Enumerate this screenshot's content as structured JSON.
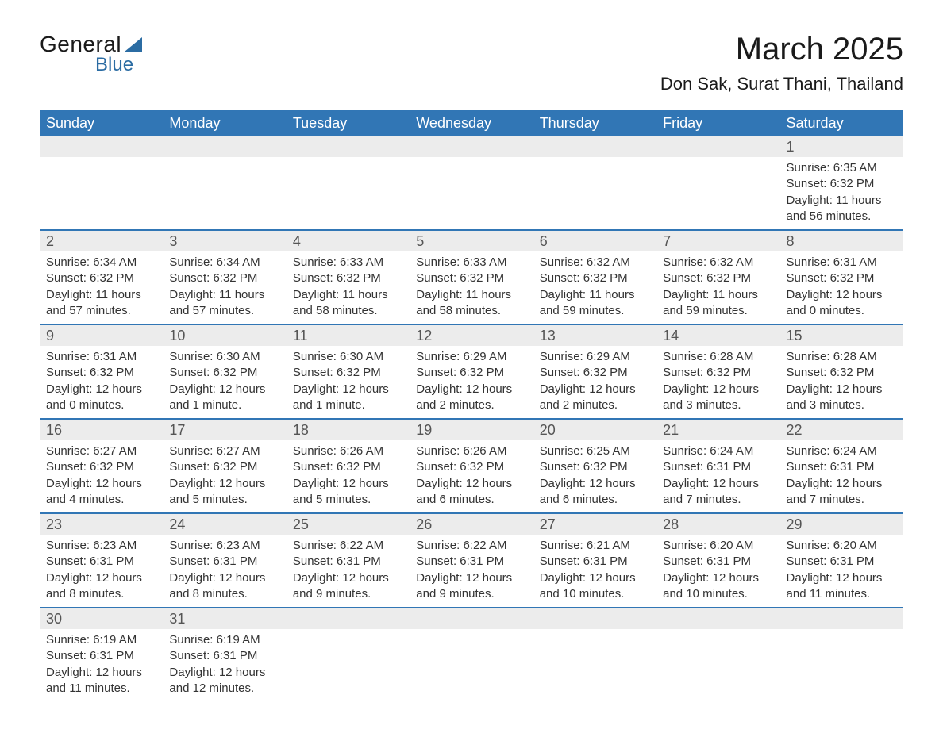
{
  "logo": {
    "text_general": "General",
    "text_blue": "Blue",
    "accent_color": "#2b6ca3"
  },
  "title": "March 2025",
  "location": "Don Sak, Surat Thani, Thailand",
  "header_bg_color": "#3176b5",
  "header_text_color": "#ffffff",
  "daynum_bg_color": "#ececec",
  "row_border_color": "#3176b5",
  "body_text_color": "#333333",
  "daynum_text_color": "#555555",
  "columns": [
    "Sunday",
    "Monday",
    "Tuesday",
    "Wednesday",
    "Thursday",
    "Friday",
    "Saturday"
  ],
  "weeks": [
    [
      null,
      null,
      null,
      null,
      null,
      null,
      {
        "n": "1",
        "sr": "Sunrise: 6:35 AM",
        "ss": "Sunset: 6:32 PM",
        "d1": "Daylight: 11 hours",
        "d2": "and 56 minutes."
      }
    ],
    [
      {
        "n": "2",
        "sr": "Sunrise: 6:34 AM",
        "ss": "Sunset: 6:32 PM",
        "d1": "Daylight: 11 hours",
        "d2": "and 57 minutes."
      },
      {
        "n": "3",
        "sr": "Sunrise: 6:34 AM",
        "ss": "Sunset: 6:32 PM",
        "d1": "Daylight: 11 hours",
        "d2": "and 57 minutes."
      },
      {
        "n": "4",
        "sr": "Sunrise: 6:33 AM",
        "ss": "Sunset: 6:32 PM",
        "d1": "Daylight: 11 hours",
        "d2": "and 58 minutes."
      },
      {
        "n": "5",
        "sr": "Sunrise: 6:33 AM",
        "ss": "Sunset: 6:32 PM",
        "d1": "Daylight: 11 hours",
        "d2": "and 58 minutes."
      },
      {
        "n": "6",
        "sr": "Sunrise: 6:32 AM",
        "ss": "Sunset: 6:32 PM",
        "d1": "Daylight: 11 hours",
        "d2": "and 59 minutes."
      },
      {
        "n": "7",
        "sr": "Sunrise: 6:32 AM",
        "ss": "Sunset: 6:32 PM",
        "d1": "Daylight: 11 hours",
        "d2": "and 59 minutes."
      },
      {
        "n": "8",
        "sr": "Sunrise: 6:31 AM",
        "ss": "Sunset: 6:32 PM",
        "d1": "Daylight: 12 hours",
        "d2": "and 0 minutes."
      }
    ],
    [
      {
        "n": "9",
        "sr": "Sunrise: 6:31 AM",
        "ss": "Sunset: 6:32 PM",
        "d1": "Daylight: 12 hours",
        "d2": "and 0 minutes."
      },
      {
        "n": "10",
        "sr": "Sunrise: 6:30 AM",
        "ss": "Sunset: 6:32 PM",
        "d1": "Daylight: 12 hours",
        "d2": "and 1 minute."
      },
      {
        "n": "11",
        "sr": "Sunrise: 6:30 AM",
        "ss": "Sunset: 6:32 PM",
        "d1": "Daylight: 12 hours",
        "d2": "and 1 minute."
      },
      {
        "n": "12",
        "sr": "Sunrise: 6:29 AM",
        "ss": "Sunset: 6:32 PM",
        "d1": "Daylight: 12 hours",
        "d2": "and 2 minutes."
      },
      {
        "n": "13",
        "sr": "Sunrise: 6:29 AM",
        "ss": "Sunset: 6:32 PM",
        "d1": "Daylight: 12 hours",
        "d2": "and 2 minutes."
      },
      {
        "n": "14",
        "sr": "Sunrise: 6:28 AM",
        "ss": "Sunset: 6:32 PM",
        "d1": "Daylight: 12 hours",
        "d2": "and 3 minutes."
      },
      {
        "n": "15",
        "sr": "Sunrise: 6:28 AM",
        "ss": "Sunset: 6:32 PM",
        "d1": "Daylight: 12 hours",
        "d2": "and 3 minutes."
      }
    ],
    [
      {
        "n": "16",
        "sr": "Sunrise: 6:27 AM",
        "ss": "Sunset: 6:32 PM",
        "d1": "Daylight: 12 hours",
        "d2": "and 4 minutes."
      },
      {
        "n": "17",
        "sr": "Sunrise: 6:27 AM",
        "ss": "Sunset: 6:32 PM",
        "d1": "Daylight: 12 hours",
        "d2": "and 5 minutes."
      },
      {
        "n": "18",
        "sr": "Sunrise: 6:26 AM",
        "ss": "Sunset: 6:32 PM",
        "d1": "Daylight: 12 hours",
        "d2": "and 5 minutes."
      },
      {
        "n": "19",
        "sr": "Sunrise: 6:26 AM",
        "ss": "Sunset: 6:32 PM",
        "d1": "Daylight: 12 hours",
        "d2": "and 6 minutes."
      },
      {
        "n": "20",
        "sr": "Sunrise: 6:25 AM",
        "ss": "Sunset: 6:32 PM",
        "d1": "Daylight: 12 hours",
        "d2": "and 6 minutes."
      },
      {
        "n": "21",
        "sr": "Sunrise: 6:24 AM",
        "ss": "Sunset: 6:31 PM",
        "d1": "Daylight: 12 hours",
        "d2": "and 7 minutes."
      },
      {
        "n": "22",
        "sr": "Sunrise: 6:24 AM",
        "ss": "Sunset: 6:31 PM",
        "d1": "Daylight: 12 hours",
        "d2": "and 7 minutes."
      }
    ],
    [
      {
        "n": "23",
        "sr": "Sunrise: 6:23 AM",
        "ss": "Sunset: 6:31 PM",
        "d1": "Daylight: 12 hours",
        "d2": "and 8 minutes."
      },
      {
        "n": "24",
        "sr": "Sunrise: 6:23 AM",
        "ss": "Sunset: 6:31 PM",
        "d1": "Daylight: 12 hours",
        "d2": "and 8 minutes."
      },
      {
        "n": "25",
        "sr": "Sunrise: 6:22 AM",
        "ss": "Sunset: 6:31 PM",
        "d1": "Daylight: 12 hours",
        "d2": "and 9 minutes."
      },
      {
        "n": "26",
        "sr": "Sunrise: 6:22 AM",
        "ss": "Sunset: 6:31 PM",
        "d1": "Daylight: 12 hours",
        "d2": "and 9 minutes."
      },
      {
        "n": "27",
        "sr": "Sunrise: 6:21 AM",
        "ss": "Sunset: 6:31 PM",
        "d1": "Daylight: 12 hours",
        "d2": "and 10 minutes."
      },
      {
        "n": "28",
        "sr": "Sunrise: 6:20 AM",
        "ss": "Sunset: 6:31 PM",
        "d1": "Daylight: 12 hours",
        "d2": "and 10 minutes."
      },
      {
        "n": "29",
        "sr": "Sunrise: 6:20 AM",
        "ss": "Sunset: 6:31 PM",
        "d1": "Daylight: 12 hours",
        "d2": "and 11 minutes."
      }
    ],
    [
      {
        "n": "30",
        "sr": "Sunrise: 6:19 AM",
        "ss": "Sunset: 6:31 PM",
        "d1": "Daylight: 12 hours",
        "d2": "and 11 minutes."
      },
      {
        "n": "31",
        "sr": "Sunrise: 6:19 AM",
        "ss": "Sunset: 6:31 PM",
        "d1": "Daylight: 12 hours",
        "d2": "and 12 minutes."
      },
      null,
      null,
      null,
      null,
      null
    ]
  ]
}
